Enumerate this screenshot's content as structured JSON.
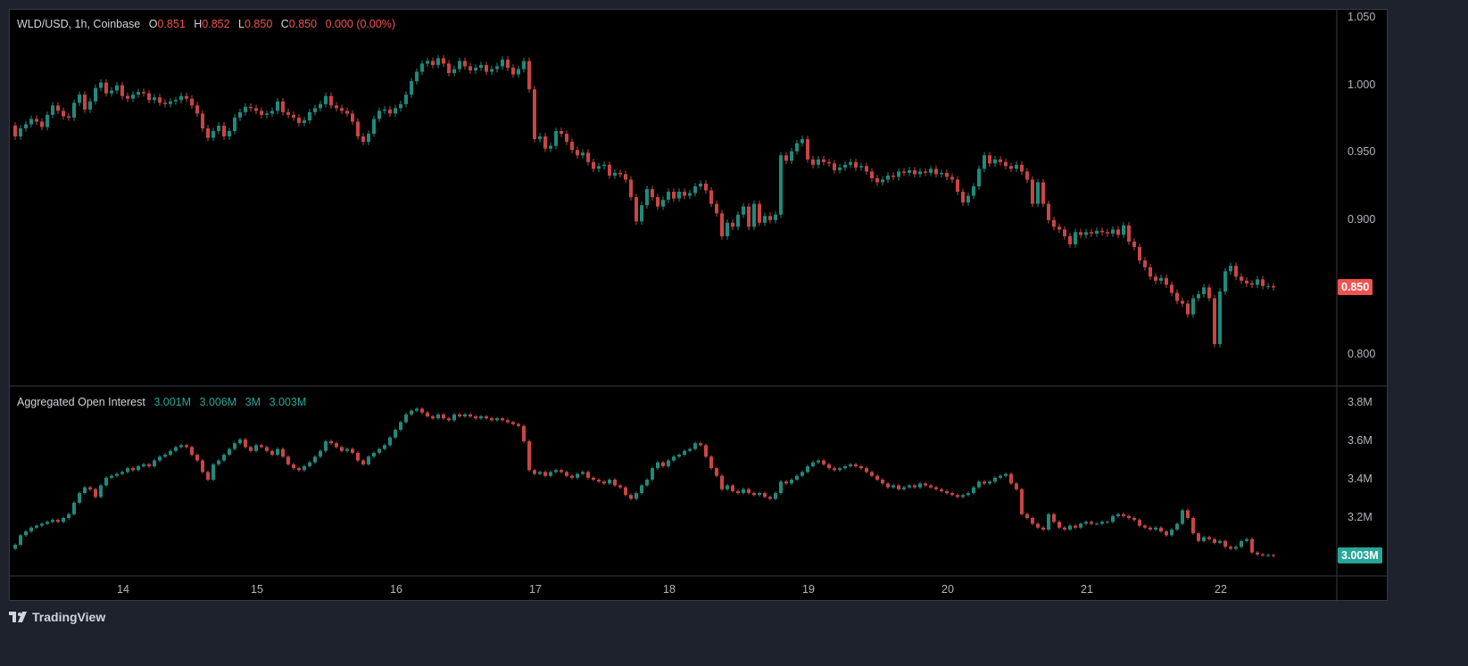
{
  "header": {
    "symbol": "WLD/USD, 1h, Coinbase",
    "o_label": "O",
    "o_value": "0.851",
    "h_label": "H",
    "h_value": "0.852",
    "l_label": "L",
    "l_value": "0.850",
    "c_label": "C",
    "c_value": "0.850",
    "change": "0.000 (0.00%)"
  },
  "oi_header": {
    "title": "Aggregated Open Interest",
    "values": [
      "3.001M",
      "3.006M",
      "3M",
      "3.003M"
    ]
  },
  "brand": "TradingView",
  "colors": {
    "up": "#1f8a7c",
    "down": "#c94545",
    "last_price": "#f05350",
    "last_oi": "#26a69a"
  },
  "chart_data": [
    {
      "type": "candlestick",
      "title": "WLD/USD, 1h, Coinbase",
      "ylim": [
        0.79,
        1.05
      ],
      "y_ticks": [
        "1.050",
        "1.000",
        "0.950",
        "0.900",
        "0.800"
      ],
      "y_tick_values": [
        1.05,
        1.0,
        0.95,
        0.9,
        0.8
      ],
      "last_label": "0.850",
      "last_value": 0.85,
      "first_open": 0.97,
      "closes": [
        0.962,
        0.968,
        0.971,
        0.975,
        0.973,
        0.969,
        0.978,
        0.985,
        0.981,
        0.977,
        0.976,
        0.987,
        0.993,
        0.982,
        0.988,
        0.998,
        1.002,
        0.994,
        0.996,
        1.0,
        0.992,
        0.99,
        0.993,
        0.995,
        0.994,
        0.989,
        0.991,
        0.987,
        0.986,
        0.988,
        0.989,
        0.992,
        0.99,
        0.985,
        0.979,
        0.968,
        0.961,
        0.966,
        0.97,
        0.962,
        0.966,
        0.976,
        0.98,
        0.984,
        0.983,
        0.981,
        0.978,
        0.979,
        0.981,
        0.988,
        0.98,
        0.978,
        0.976,
        0.972,
        0.974,
        0.98,
        0.983,
        0.986,
        0.992,
        0.985,
        0.983,
        0.981,
        0.979,
        0.973,
        0.962,
        0.958,
        0.964,
        0.975,
        0.981,
        0.982,
        0.979,
        0.983,
        0.986,
        0.993,
        1.003,
        1.01,
        1.016,
        1.018,
        1.015,
        1.02,
        1.016,
        1.009,
        1.012,
        1.018,
        1.014,
        1.011,
        1.013,
        1.015,
        1.01,
        1.012,
        1.014,
        1.019,
        1.013,
        1.008,
        1.012,
        1.018,
        0.997,
        0.96,
        0.962,
        0.953,
        0.955,
        0.966,
        0.964,
        0.958,
        0.952,
        0.948,
        0.95,
        0.943,
        0.938,
        0.94,
        0.941,
        0.933,
        0.935,
        0.934,
        0.93,
        0.917,
        0.899,
        0.911,
        0.923,
        0.917,
        0.91,
        0.915,
        0.921,
        0.916,
        0.921,
        0.918,
        0.92,
        0.925,
        0.927,
        0.922,
        0.912,
        0.905,
        0.888,
        0.898,
        0.895,
        0.904,
        0.91,
        0.895,
        0.912,
        0.898,
        0.903,
        0.9,
        0.904,
        0.948,
        0.944,
        0.951,
        0.957,
        0.96,
        0.945,
        0.941,
        0.945,
        0.943,
        0.942,
        0.937,
        0.939,
        0.941,
        0.943,
        0.939,
        0.94,
        0.936,
        0.931,
        0.928,
        0.93,
        0.933,
        0.932,
        0.936,
        0.935,
        0.937,
        0.934,
        0.936,
        0.935,
        0.938,
        0.934,
        0.935,
        0.932,
        0.93,
        0.921,
        0.913,
        0.918,
        0.925,
        0.938,
        0.948,
        0.942,
        0.945,
        0.943,
        0.94,
        0.938,
        0.941,
        0.936,
        0.93,
        0.912,
        0.928,
        0.912,
        0.9,
        0.895,
        0.893,
        0.888,
        0.882,
        0.891,
        0.889,
        0.891,
        0.89,
        0.892,
        0.891,
        0.89,
        0.893,
        0.889,
        0.896,
        0.884,
        0.88,
        0.87,
        0.865,
        0.858,
        0.855,
        0.857,
        0.852,
        0.846,
        0.84,
        0.838,
        0.83,
        0.842,
        0.845,
        0.85,
        0.842,
        0.808,
        0.847,
        0.862,
        0.866,
        0.858,
        0.855,
        0.853,
        0.852,
        0.856,
        0.851,
        0.851,
        0.85
      ]
    },
    {
      "type": "candlestick",
      "title": "Aggregated Open Interest",
      "unit": "M",
      "ylim": [
        2.95,
        3.88
      ],
      "y_ticks": [
        "3.8M",
        "3.6M",
        "3.4M",
        "3.2M"
      ],
      "y_tick_values": [
        3.8,
        3.6,
        3.4,
        3.2
      ],
      "last_label": "3.003M",
      "last_value": 3.003,
      "first_open": 3.04,
      "closes": [
        3.06,
        3.11,
        3.13,
        3.15,
        3.16,
        3.17,
        3.18,
        3.19,
        3.18,
        3.2,
        3.22,
        3.28,
        3.33,
        3.36,
        3.35,
        3.31,
        3.37,
        3.41,
        3.42,
        3.43,
        3.44,
        3.46,
        3.45,
        3.47,
        3.48,
        3.47,
        3.5,
        3.52,
        3.53,
        3.55,
        3.57,
        3.58,
        3.57,
        3.53,
        3.5,
        3.44,
        3.4,
        3.48,
        3.5,
        3.53,
        3.56,
        3.59,
        3.61,
        3.57,
        3.55,
        3.58,
        3.57,
        3.55,
        3.53,
        3.56,
        3.52,
        3.48,
        3.46,
        3.45,
        3.47,
        3.49,
        3.52,
        3.55,
        3.6,
        3.59,
        3.57,
        3.55,
        3.56,
        3.54,
        3.5,
        3.48,
        3.52,
        3.54,
        3.56,
        3.58,
        3.62,
        3.66,
        3.7,
        3.74,
        3.76,
        3.77,
        3.75,
        3.73,
        3.72,
        3.74,
        3.72,
        3.71,
        3.74,
        3.73,
        3.74,
        3.73,
        3.72,
        3.73,
        3.72,
        3.71,
        3.72,
        3.71,
        3.7,
        3.69,
        3.68,
        3.6,
        3.45,
        3.43,
        3.44,
        3.42,
        3.44,
        3.45,
        3.44,
        3.42,
        3.41,
        3.43,
        3.44,
        3.41,
        3.4,
        3.39,
        3.38,
        3.4,
        3.37,
        3.36,
        3.32,
        3.3,
        3.33,
        3.37,
        3.4,
        3.46,
        3.49,
        3.47,
        3.5,
        3.52,
        3.53,
        3.55,
        3.56,
        3.59,
        3.58,
        3.52,
        3.46,
        3.42,
        3.35,
        3.37,
        3.34,
        3.33,
        3.35,
        3.33,
        3.32,
        3.33,
        3.31,
        3.3,
        3.33,
        3.39,
        3.38,
        3.4,
        3.42,
        3.44,
        3.47,
        3.49,
        3.5,
        3.48,
        3.46,
        3.45,
        3.46,
        3.47,
        3.48,
        3.47,
        3.46,
        3.44,
        3.42,
        3.4,
        3.38,
        3.36,
        3.37,
        3.35,
        3.36,
        3.37,
        3.36,
        3.38,
        3.37,
        3.36,
        3.35,
        3.34,
        3.33,
        3.32,
        3.31,
        3.32,
        3.33,
        3.36,
        3.39,
        3.38,
        3.39,
        3.41,
        3.42,
        3.43,
        3.38,
        3.35,
        3.22,
        3.2,
        3.17,
        3.15,
        3.14,
        3.22,
        3.18,
        3.15,
        3.14,
        3.16,
        3.15,
        3.17,
        3.18,
        3.17,
        3.17,
        3.18,
        3.18,
        3.21,
        3.22,
        3.21,
        3.2,
        3.19,
        3.16,
        3.15,
        3.14,
        3.15,
        3.13,
        3.11,
        3.14,
        3.17,
        3.24,
        3.2,
        3.12,
        3.08,
        3.1,
        3.09,
        3.07,
        3.08,
        3.05,
        3.04,
        3.05,
        3.08,
        3.09,
        3.02,
        3.01,
        3.005,
        3.006,
        3.003
      ]
    }
  ],
  "x_axis": {
    "tick_labels": [
      "14",
      "15",
      "16",
      "17",
      "18",
      "19",
      "20",
      "21",
      "22"
    ],
    "tick_candle_index": [
      20,
      45,
      71,
      97,
      122,
      148,
      174,
      200,
      225
    ]
  }
}
